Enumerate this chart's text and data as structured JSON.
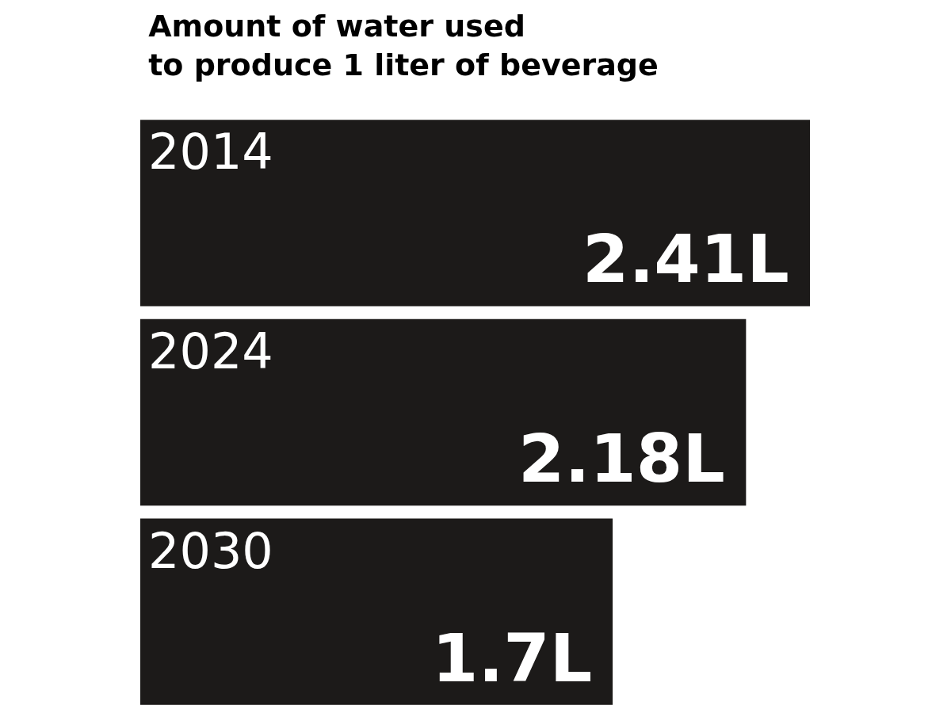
{
  "chart_data": {
    "type": "bar",
    "orientation": "horizontal",
    "title": "Amount of water used\nto produce 1 liter of beverage",
    "categories": [
      "2014",
      "2024",
      "2030"
    ],
    "values": [
      2.41,
      2.18,
      1.7
    ],
    "value_labels": [
      "2.41L",
      "2.18L",
      "1.7L"
    ],
    "color": "#1c1a19",
    "tick_labels": false
  }
}
